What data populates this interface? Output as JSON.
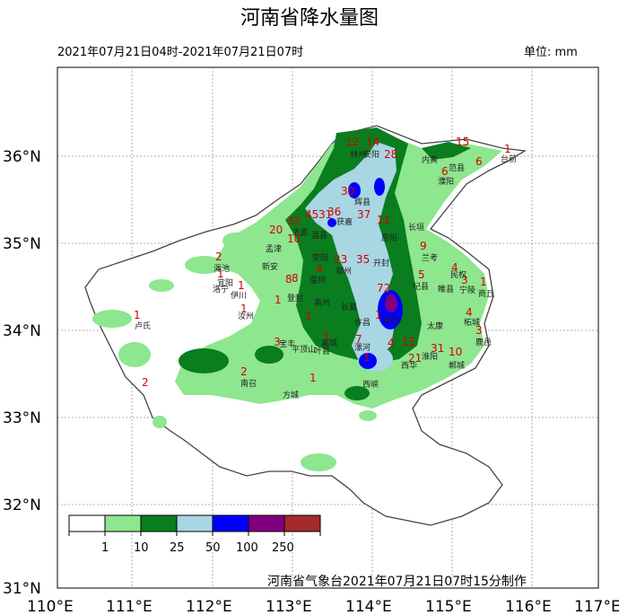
{
  "map": {
    "title": "河南省降水量图",
    "time_range": "2021年07月21日04时-2021年07月21日07时",
    "unit": "单位: mm",
    "credit": "河南省气象台2021年07月21日07时15分制作",
    "lat_labels": [
      "36°N",
      "35°N",
      "34°N",
      "33°N",
      "32°N",
      "31°N"
    ],
    "lon_labels": [
      "110°E",
      "111°E",
      "112°E",
      "113°E",
      "114°E",
      "115°E",
      "116°E",
      "117°E"
    ],
    "legend": {
      "labels": [
        "1",
        "10",
        "25",
        "50",
        "100",
        "250"
      ],
      "colors": [
        "#ffffff",
        "#8ee68e",
        "#0a7d1e",
        "#a9d6e3",
        "#0000ff",
        "#800080",
        "#a52a2a"
      ]
    },
    "values": [
      "12",
      "14",
      "28",
      "15",
      "1",
      "6",
      "30",
      "45",
      "32",
      "31",
      "36",
      "37",
      "11",
      "20",
      "10",
      "8",
      "4",
      "23",
      "35",
      "72",
      "9",
      "5",
      "4",
      "3",
      "1",
      "2",
      "1",
      "1",
      "1",
      "1",
      "1",
      "1",
      "3",
      "1",
      "1",
      "7",
      "1",
      "4",
      "15",
      "31",
      "21",
      "10",
      "4",
      "3",
      "2",
      "2",
      "8",
      "1",
      "6"
    ],
    "counties": [
      "林州",
      "安阳",
      "内黄",
      "濮阳",
      "范县",
      "台前",
      "辉县",
      "获嘉",
      "原阳",
      "长垣",
      "济源",
      "温县",
      "荥阳",
      "郑州",
      "开封",
      "兰考",
      "民权",
      "宁陵",
      "商丘",
      "杞县",
      "睢县",
      "伊川",
      "汝州",
      "长葛",
      "尉氏",
      "太康",
      "柘城",
      "鹿邑",
      "叶县",
      "西华",
      "淮阳",
      "郸城",
      "西峡",
      "南召",
      "方城",
      "卢氏",
      "洛宁",
      "宜阳",
      "渑池",
      "孟津",
      "新安",
      "偃师",
      "登封",
      "禹州",
      "许昌",
      "襄城",
      "漯河",
      "平顶山",
      "宝丰"
    ]
  }
}
